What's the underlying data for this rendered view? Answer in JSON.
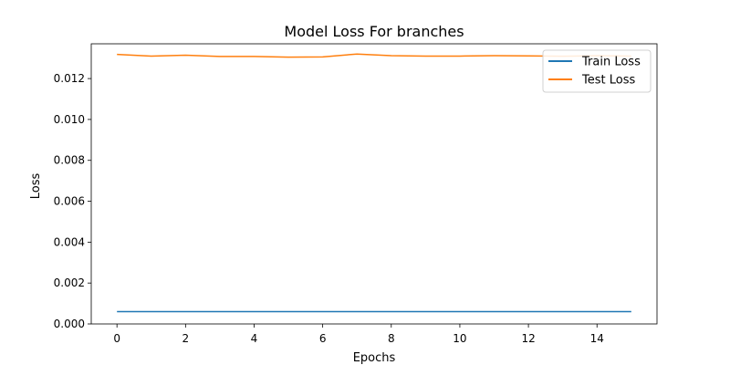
{
  "chart_data": {
    "type": "line",
    "title": "Model Loss For branches",
    "xlabel": "Epochs",
    "ylabel": "Loss",
    "x": [
      0,
      1,
      2,
      3,
      4,
      5,
      6,
      7,
      8,
      9,
      10,
      11,
      12,
      13,
      14,
      15
    ],
    "series": [
      {
        "name": "Train Loss",
        "color": "#1f77b4",
        "values": [
          0.0006,
          0.0006,
          0.0006,
          0.0006,
          0.0006,
          0.0006,
          0.0006,
          0.0006,
          0.0006,
          0.0006,
          0.0006,
          0.0006,
          0.0006,
          0.0006,
          0.0006,
          0.0006
        ]
      },
      {
        "name": "Test Loss",
        "color": "#ff7f0e",
        "values": [
          0.01318,
          0.0131,
          0.01314,
          0.01308,
          0.01308,
          0.01305,
          0.01306,
          0.0132,
          0.01312,
          0.0131,
          0.0131,
          0.01312,
          0.01311,
          0.01309,
          0.01312,
          0.0131
        ]
      }
    ],
    "xlim": [
      -0.75,
      15.75
    ],
    "ylim": [
      0,
      0.0137
    ],
    "xticks": [
      0,
      2,
      4,
      6,
      8,
      10,
      12,
      14
    ],
    "xtick_labels": [
      "0",
      "2",
      "4",
      "6",
      "8",
      "10",
      "12",
      "14"
    ],
    "yticks": [
      0,
      0.002,
      0.004,
      0.006,
      0.008,
      0.01,
      0.012
    ],
    "ytick_labels": [
      "0.000",
      "0.002",
      "0.004",
      "0.006",
      "0.008",
      "0.010",
      "0.012"
    ],
    "grid": false,
    "legend_position": "top-right"
  }
}
